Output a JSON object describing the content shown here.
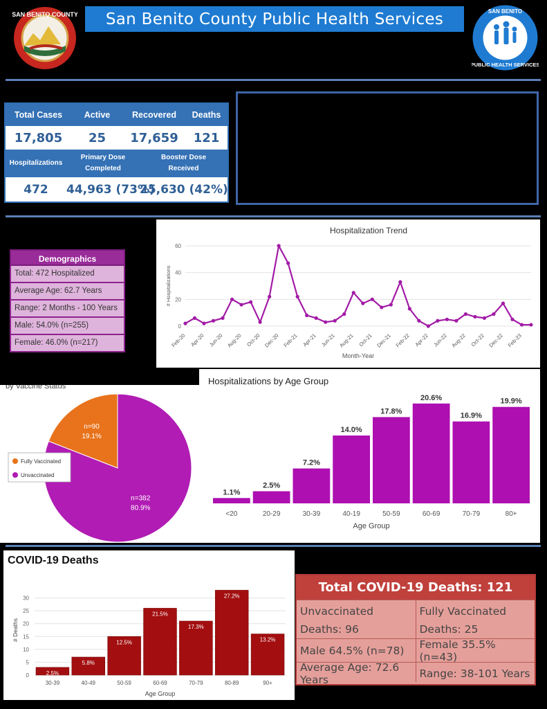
{
  "header": {
    "title": "San Benito County Public Health Services"
  },
  "logos": {
    "county_seal": {
      "name": "san-benito-county-seal",
      "text": "SAN BENITO COUNTY"
    },
    "public_health": {
      "name": "public-health-services-logo",
      "text": "SAN BENITO COUNTY PUBLIC HEALTH SERVICES"
    }
  },
  "stats": {
    "row1_headers": [
      "Total Cases",
      "Active",
      "Recovered",
      "Deaths"
    ],
    "row1_values": [
      "17,805",
      "25",
      "17,659",
      "121"
    ],
    "row2_headers": [
      "Hospitalizations",
      "Primary Dose Completed",
      "Booster Dose Received"
    ],
    "row2_values": [
      "472",
      "44,963 (73%)",
      "25,630 (42%)"
    ]
  },
  "demographics": {
    "title": "Demographics",
    "rows": [
      "Total: 472 Hospitalized",
      "Average Age: 62.7 Years",
      "Range: 2 Months - 100 Years",
      "Male: 54.0% (n=255)",
      "Female: 46.0% (n=217)"
    ]
  },
  "deaths_table": {
    "title": "Total COVID-19  Deaths: 121",
    "rows": [
      [
        "Unvaccinated Deaths: 96",
        "Fully Vaccinated Deaths: 25"
      ],
      [
        "Male 64.5% (n=78)",
        "Female 35.5% (n=43)"
      ],
      [
        "Average Age: 72.6 Years",
        "Range: 38-101 Years"
      ]
    ]
  },
  "chart_data": [
    {
      "type": "line",
      "title": "Hospitalization Trend",
      "xlabel": "Month-Year",
      "ylabel": "# Hospitalizations",
      "ylim": [
        0,
        60
      ],
      "yticks": [
        0,
        20,
        40,
        60
      ],
      "grid": true,
      "x_tick_labels": [
        "Feb-20",
        "Apr-20",
        "Jun-20",
        "Aug-20",
        "Oct-20",
        "Dec-20",
        "Feb-21",
        "Apr-21",
        "Jun-21",
        "Aug-21",
        "Oct-21",
        "Dec-21",
        "Feb-22",
        "Apr-22",
        "Jun-22",
        "Aug-22",
        "Oct-22",
        "Dec-22",
        "Feb-23"
      ],
      "categories": [
        "Feb-20",
        "Mar-20",
        "Apr-20",
        "May-20",
        "Jun-20",
        "Jul-20",
        "Aug-20",
        "Sep-20",
        "Oct-20",
        "Nov-20",
        "Dec-20",
        "Jan-21",
        "Feb-21",
        "Mar-21",
        "Apr-21",
        "May-21",
        "Jun-21",
        "Jul-21",
        "Aug-21",
        "Sep-21",
        "Oct-21",
        "Nov-21",
        "Dec-21",
        "Jan-22",
        "Feb-22",
        "Mar-22",
        "Apr-22",
        "May-22",
        "Jun-22",
        "Jul-22",
        "Aug-22",
        "Sep-22",
        "Oct-22",
        "Nov-22",
        "Dec-22",
        "Jan-23",
        "Feb-23",
        "Mar-23"
      ],
      "values": [
        2,
        6,
        2,
        4,
        6,
        20,
        16,
        18,
        3,
        22,
        60,
        47,
        22,
        8,
        6,
        3,
        4,
        9,
        25,
        17,
        20,
        14,
        16,
        33,
        13,
        4,
        0,
        4,
        5,
        4,
        9,
        7,
        6,
        9,
        17,
        5,
        1,
        1
      ],
      "color": "#a21aa6"
    },
    {
      "type": "pie",
      "title": "by Vaccine Status",
      "legend": "left",
      "slices": [
        {
          "name": "Fully Vaccinated",
          "n_label": "n=90",
          "pct_label": "19.1%",
          "value": 19.1,
          "color": "#e8731c"
        },
        {
          "name": "Unvaccinated",
          "n_label": "n=382",
          "pct_label": "80.9%",
          "value": 80.9,
          "color": "#b11cb4"
        }
      ]
    },
    {
      "type": "bar",
      "title": "Hospitalizations by Age Group",
      "xlabel": "Age Group",
      "categories": [
        "<20",
        "20-29",
        "30-39",
        "40-19",
        "50-59",
        "60-69",
        "70-79",
        "80+"
      ],
      "values": [
        1.1,
        2.5,
        7.2,
        14.0,
        17.8,
        20.6,
        16.9,
        19.9
      ],
      "labels": [
        "1.1%",
        "2.5%",
        "7.2%",
        "14.0%",
        "17.8%",
        "20.6%",
        "16.9%",
        "19.9%"
      ],
      "ylim": [
        0,
        22
      ],
      "color": "#ad0fb0"
    },
    {
      "type": "bar",
      "title": "COVID-19 Deaths",
      "xlabel": "Age Group",
      "ylabel": "# Deaths",
      "categories": [
        "30-39",
        "40-49",
        "50-59",
        "60-69",
        "70-79",
        "80-89",
        "90+"
      ],
      "values": [
        3,
        7,
        15,
        26,
        21,
        33,
        16
      ],
      "labels": [
        "2.5%",
        "5.8%",
        "12.5%",
        "21.5%",
        "17.3%",
        "27.2%",
        "13.2%"
      ],
      "ylim": [
        0,
        35
      ],
      "yticks": [
        0,
        5,
        10,
        15,
        20,
        25,
        30
      ],
      "grid": true,
      "color": "#a30f10"
    }
  ]
}
